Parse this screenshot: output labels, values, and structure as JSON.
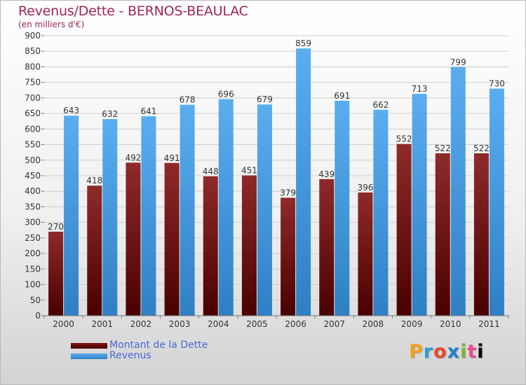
{
  "header": {
    "title": "Revenus/Dette - BERNOS-BEAULAC",
    "subtitle": "(en milliers d'€)"
  },
  "colors": {
    "title": "#a0245a",
    "debt_bar": "#7a1414",
    "revenue_bar": "#4a9fe0",
    "legend_text": "#4a68d6"
  },
  "chart_data": {
    "type": "bar",
    "title": "Revenus/Dette - BERNOS-BEAULAC",
    "subtitle": "(en milliers d'€)",
    "categories": [
      "2000",
      "2001",
      "2002",
      "2003",
      "2004",
      "2005",
      "2006",
      "2007",
      "2008",
      "2009",
      "2010",
      "2011"
    ],
    "series": [
      {
        "name": "Montant de la Dette",
        "values": [
          270,
          418,
          492,
          491,
          448,
          451,
          379,
          439,
          396,
          552,
          522,
          522
        ],
        "color": "#7a1414"
      },
      {
        "name": "Revenus",
        "values": [
          643,
          632,
          641,
          678,
          696,
          679,
          859,
          691,
          662,
          713,
          799,
          730
        ],
        "color": "#4a9fe0"
      }
    ],
    "ylim": [
      0,
      900
    ],
    "yticks": [
      0,
      50,
      100,
      150,
      200,
      250,
      300,
      350,
      400,
      450,
      500,
      550,
      600,
      650,
      700,
      750,
      800,
      850,
      900
    ],
    "grid": true,
    "legend": "bottom-left"
  },
  "legend": {
    "items": [
      {
        "label": "Montant de la Dette"
      },
      {
        "label": "Revenus"
      }
    ]
  },
  "logo": {
    "letters": [
      "P",
      "r",
      "o",
      "x",
      "i",
      "t",
      "i"
    ]
  }
}
